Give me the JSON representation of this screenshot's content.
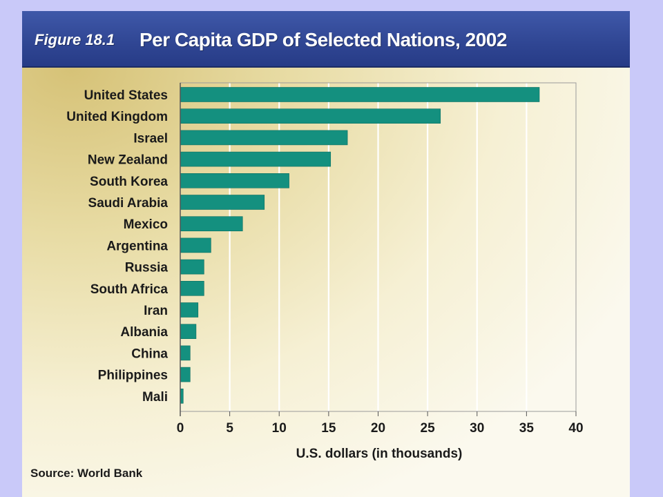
{
  "figure": {
    "label": "Figure 18.1",
    "title": "Per Capita GDP of Selected Nations, 2002",
    "source": "Source: World Bank"
  },
  "colors": {
    "background": "#c9c9f9",
    "header": "#2f4592",
    "bar": "#14907f"
  },
  "chart_data": {
    "type": "bar",
    "orientation": "horizontal",
    "title": "Per Capita GDP of Selected Nations, 2002",
    "xlabel": "U.S. dollars (in thousands)",
    "ylabel": "",
    "xlim": [
      0,
      40
    ],
    "xticks": [
      0,
      5,
      10,
      15,
      20,
      25,
      30,
      35,
      40
    ],
    "grid": true,
    "categories": [
      "United States",
      "United Kingdom",
      "Israel",
      "New Zealand",
      "South Korea",
      "Saudi Arabia",
      "Mexico",
      "Argentina",
      "Russia",
      "South Africa",
      "Iran",
      "Albania",
      "China",
      "Philippines",
      "Mali"
    ],
    "values": [
      36.3,
      26.3,
      16.9,
      15.2,
      11.0,
      8.5,
      6.3,
      3.1,
      2.4,
      2.4,
      1.8,
      1.6,
      1.0,
      1.0,
      0.3
    ]
  }
}
